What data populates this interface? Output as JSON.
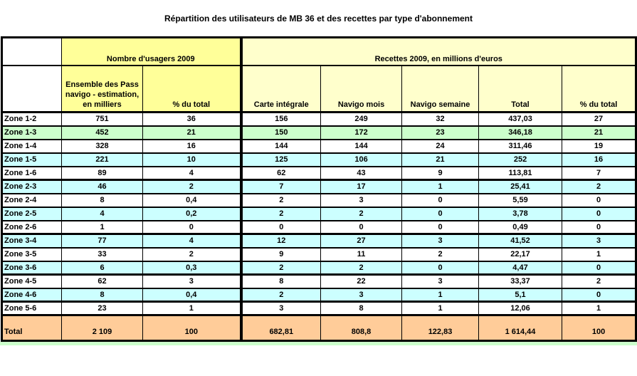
{
  "chart_data": {
    "type": "table",
    "title": "Répartition des utilisateurs de MB 36 et des recettes par type d'abonnement",
    "header_groups": {
      "usagers": "Nombre d'usagers 2009",
      "recettes": "Recettes 2009, en millions d'euros"
    },
    "columns": [
      "Ensemble des Pass navigo - estimation, en milliers",
      "% du total",
      "Carte intégrale",
      "Navigo mois",
      "Navigo semaine",
      "Total",
      "% du total"
    ],
    "rows": [
      {
        "zone": "Zone 1-2",
        "bg": "white",
        "group_end": false,
        "values": [
          "751",
          "36",
          "156",
          "249",
          "32",
          "437,03",
          "27"
        ]
      },
      {
        "zone": "Zone 1-3",
        "bg": "green",
        "group_end": false,
        "values": [
          "452",
          "21",
          "150",
          "172",
          "23",
          "346,18",
          "21"
        ]
      },
      {
        "zone": "Zone 1-4",
        "bg": "white",
        "group_end": false,
        "values": [
          "328",
          "16",
          "144",
          "144",
          "24",
          "311,46",
          "19"
        ]
      },
      {
        "zone": "Zone 1-5",
        "bg": "cyan",
        "group_end": false,
        "values": [
          "221",
          "10",
          "125",
          "106",
          "21",
          "252",
          "16"
        ]
      },
      {
        "zone": "Zone 1-6",
        "bg": "white",
        "group_end": true,
        "values": [
          "89",
          "4",
          "62",
          "43",
          "9",
          "113,81",
          "7"
        ]
      },
      {
        "zone": "Zone 2-3",
        "bg": "cyan",
        "group_end": false,
        "values": [
          "46",
          "2",
          "7",
          "17",
          "1",
          "25,41",
          "2"
        ]
      },
      {
        "zone": "Zone 2-4",
        "bg": "white",
        "group_end": false,
        "values": [
          "8",
          "0,4",
          "2",
          "3",
          "0",
          "5,59",
          "0"
        ]
      },
      {
        "zone": "Zone 2-5",
        "bg": "cyan",
        "group_end": false,
        "values": [
          "4",
          "0,2",
          "2",
          "2",
          "0",
          "3,78",
          "0"
        ]
      },
      {
        "zone": "Zone 2-6",
        "bg": "white",
        "group_end": true,
        "values": [
          "1",
          "0",
          "0",
          "0",
          "0",
          "0,49",
          "0"
        ]
      },
      {
        "zone": "Zone 3-4",
        "bg": "cyan",
        "group_end": false,
        "values": [
          "77",
          "4",
          "12",
          "27",
          "3",
          "41,52",
          "3"
        ]
      },
      {
        "zone": "Zone 3-5",
        "bg": "white",
        "group_end": false,
        "values": [
          "33",
          "2",
          "9",
          "11",
          "2",
          "22,17",
          "1"
        ]
      },
      {
        "zone": "Zone 3-6",
        "bg": "cyan",
        "group_end": true,
        "values": [
          "6",
          "0,3",
          "2",
          "2",
          "0",
          "4,47",
          "0"
        ]
      },
      {
        "zone": "Zone 4-5",
        "bg": "white",
        "group_end": false,
        "values": [
          "62",
          "3",
          "8",
          "22",
          "3",
          "33,37",
          "2"
        ]
      },
      {
        "zone": "Zone 4-6",
        "bg": "cyan",
        "group_end": true,
        "values": [
          "8",
          "0,4",
          "2",
          "3",
          "1",
          "5,1",
          "0"
        ]
      },
      {
        "zone": "Zone 5-6",
        "bg": "white",
        "group_end": false,
        "values": [
          "23",
          "1",
          "3",
          "8",
          "1",
          "12,06",
          "1"
        ]
      }
    ],
    "total": {
      "label": "Total",
      "values": [
        "2 109",
        "100",
        "682,81",
        "808,8",
        "122,83",
        "1 614,44",
        "100"
      ]
    }
  },
  "colors": {
    "usagers_header_bg": "#FFFF99",
    "recettes_header_bg": "#FFFFCC",
    "row_green": "#CCFFCC",
    "row_cyan": "#CCFFFF",
    "row_white": "#FFFFFF",
    "total_row_bg": "#FFCC99",
    "grid_border": "#000000"
  }
}
